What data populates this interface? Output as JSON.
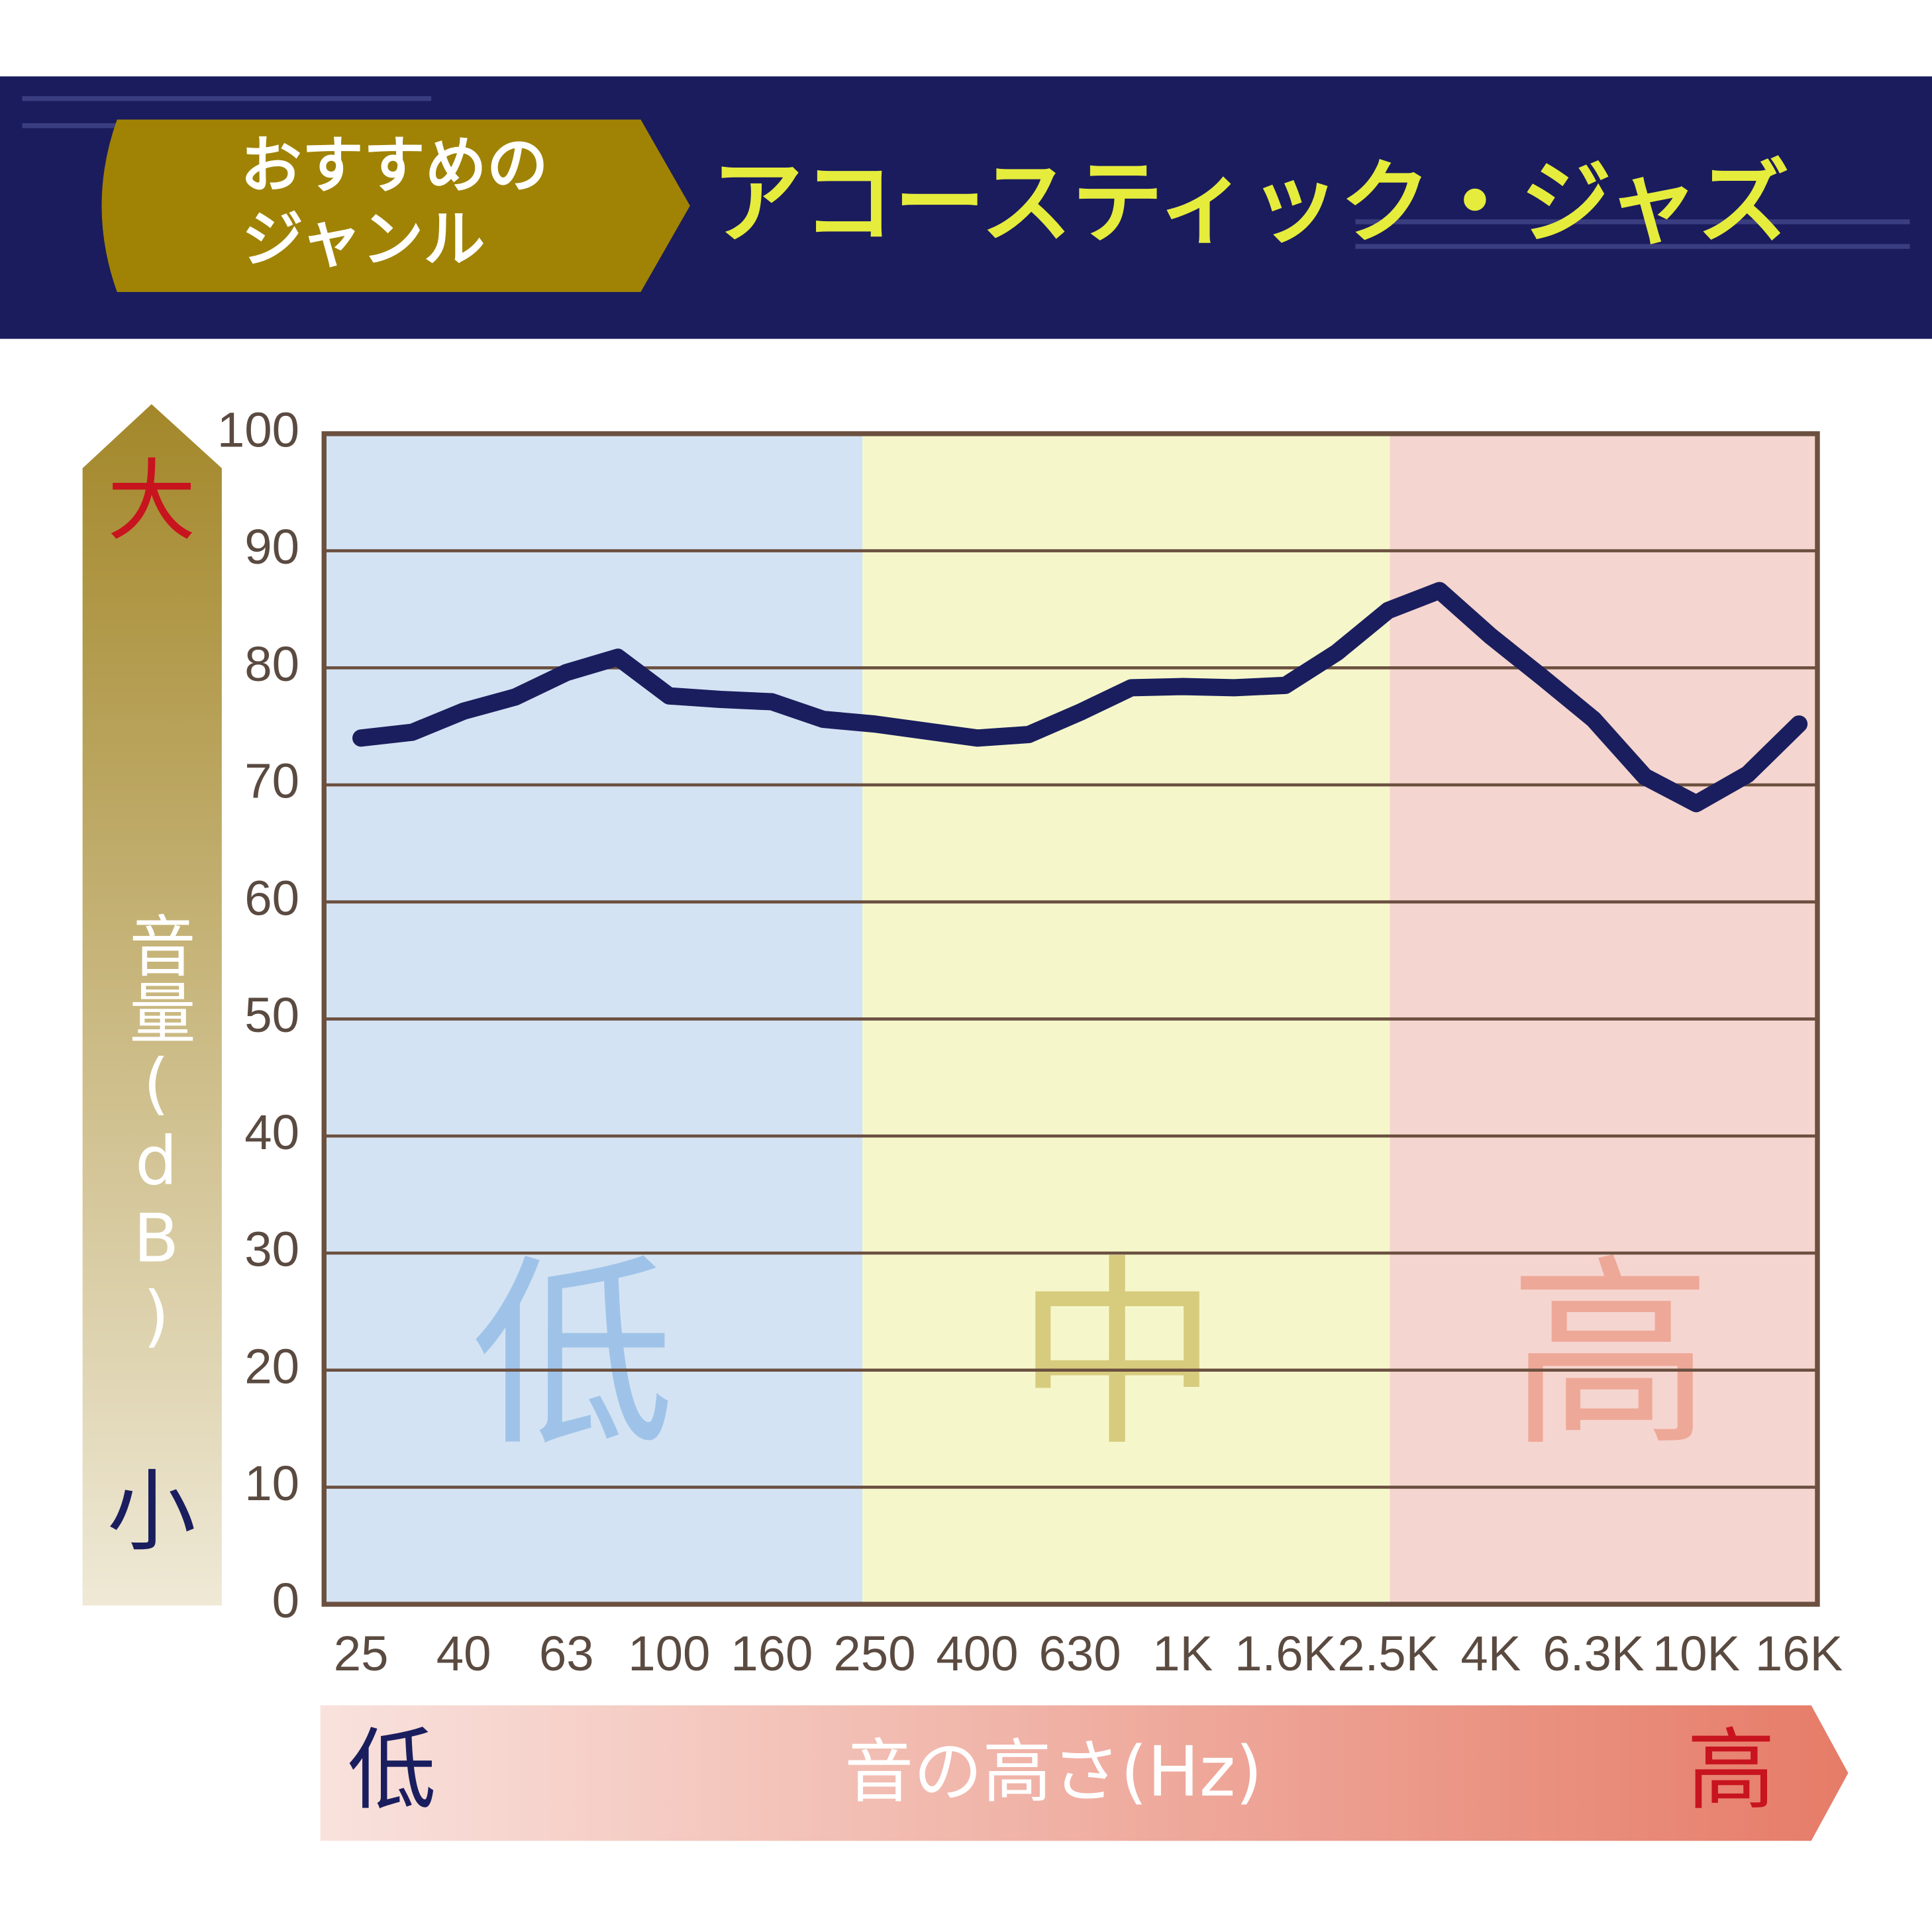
{
  "header": {
    "badge": [
      "おすすめの",
      "ジャンル"
    ],
    "genre": "アコースティック・ジャズ"
  },
  "chart_data": {
    "type": "line",
    "ylabel": "音量(dB)",
    "y_high": "大",
    "y_low": "小",
    "xlabel": "音の高さ(Hz)",
    "x_low": "低",
    "x_high": "高",
    "bands": [
      "低",
      "中",
      "高"
    ],
    "categories": [
      "25",
      null,
      "40",
      null,
      "63",
      null,
      "100",
      null,
      "160",
      null,
      "250",
      null,
      "400",
      null,
      "630",
      null,
      "1K",
      null,
      "1.6K",
      null,
      "2.5K",
      null,
      "4K",
      null,
      "6.3K",
      null,
      "10K",
      null,
      "16K"
    ],
    "values": [
      74.0,
      74.5,
      76.3,
      77.5,
      79.6,
      80.9,
      77.6,
      77.3,
      77.1,
      75.6,
      75.2,
      74.6,
      74.0,
      74.3,
      76.2,
      78.3,
      78.4,
      78.3,
      78.5,
      81.3,
      84.9,
      86.6,
      82.7,
      79.2,
      75.6,
      70.7,
      68.4,
      70.9,
      75.2
    ],
    "color": "#1a1e5e",
    "ylim": [
      0,
      100
    ],
    "yticks": [
      0,
      10,
      20,
      30,
      40,
      50,
      60,
      70,
      80,
      90,
      100
    ],
    "grid": true
  }
}
